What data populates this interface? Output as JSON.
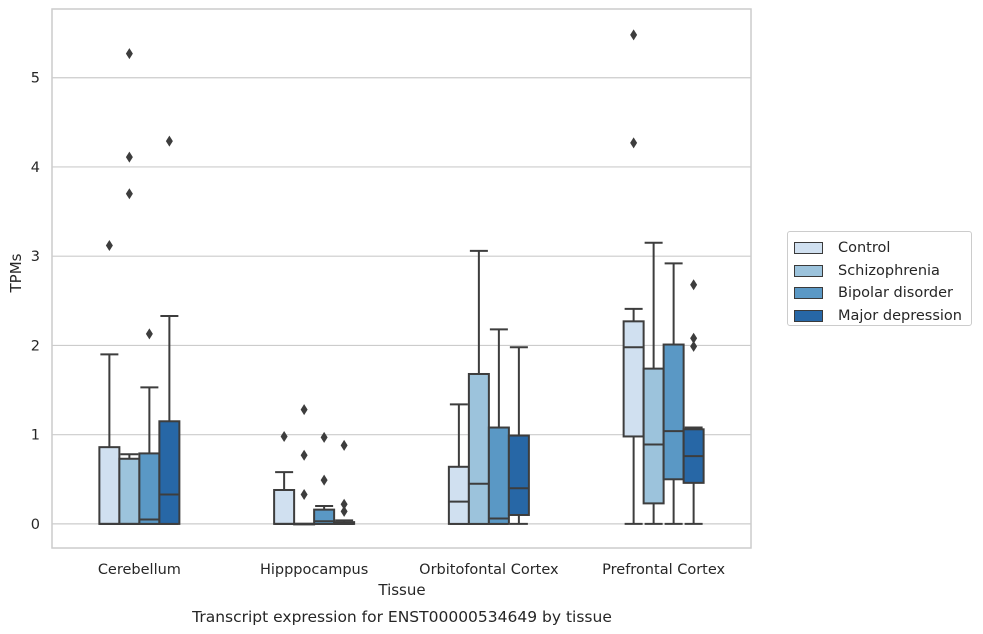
{
  "chart_data": {
    "type": "boxplot",
    "caption": "Transcript expression for ENST00000534649 by tissue",
    "xlabel": "Tissue",
    "ylabel": "TPMs",
    "ylim": [
      -0.27,
      5.77
    ],
    "yticks": [
      0,
      1,
      2,
      3,
      4,
      5
    ],
    "grid": true,
    "legend_position": "right",
    "categories": [
      "Cerebellum",
      "Hipppocampus",
      "Orbitofontal Cortex",
      "Prefrontal Cortex"
    ],
    "series": [
      {
        "name": "Control",
        "color": "#d0e0f0",
        "boxes": [
          {
            "whislo": 0,
            "q1": 0,
            "med": 0,
            "q3": 0.86,
            "whishi": 1.9,
            "fliers": [
              3.12
            ]
          },
          {
            "whislo": 0,
            "q1": 0,
            "med": 0,
            "q3": 0.38,
            "whishi": 0.58,
            "fliers": [
              0.98
            ]
          },
          {
            "whislo": 0,
            "q1": 0,
            "med": 0.25,
            "q3": 0.64,
            "whishi": 1.34,
            "fliers": []
          },
          {
            "whislo": 0,
            "q1": 0.98,
            "med": 1.98,
            "q3": 2.27,
            "whishi": 2.41,
            "fliers": [
              4.27,
              5.48
            ]
          }
        ]
      },
      {
        "name": "Schizophrenia",
        "color": "#9cc3dc",
        "boxes": [
          {
            "whislo": 0,
            "q1": 0,
            "med": 0,
            "q3": 0.73,
            "whishi": 0.78,
            "fliers": [
              3.7,
              4.11,
              5.27
            ]
          },
          {
            "whislo": 0,
            "q1": 0,
            "med": 0,
            "q3": 0,
            "whishi": 0,
            "fliers": [
              0.33,
              0.77,
              1.28
            ]
          },
          {
            "whislo": 0,
            "q1": 0,
            "med": 0.45,
            "q3": 1.68,
            "whishi": 3.06,
            "fliers": []
          },
          {
            "whislo": 0,
            "q1": 0.23,
            "med": 0.89,
            "q3": 1.74,
            "whishi": 3.15,
            "fliers": []
          }
        ]
      },
      {
        "name": "Bipolar disorder",
        "color": "#5a98c5",
        "boxes": [
          {
            "whislo": 0,
            "q1": 0,
            "med": 0.05,
            "q3": 0.79,
            "whishi": 1.53,
            "fliers": [
              2.13
            ]
          },
          {
            "whislo": 0,
            "q1": 0,
            "med": 0.03,
            "q3": 0.16,
            "whishi": 0.2,
            "fliers": [
              0.49,
              0.97
            ]
          },
          {
            "whislo": 0,
            "q1": 0,
            "med": 0.06,
            "q3": 1.08,
            "whishi": 2.18,
            "fliers": []
          },
          {
            "whislo": 0,
            "q1": 0.5,
            "med": 1.04,
            "q3": 2.01,
            "whishi": 2.92,
            "fliers": []
          }
        ]
      },
      {
        "name": "Major depression",
        "color": "#2767a6",
        "boxes": [
          {
            "whislo": 0,
            "q1": 0,
            "med": 0.33,
            "q3": 1.15,
            "whishi": 2.33,
            "fliers": [
              4.29
            ]
          },
          {
            "whislo": 0,
            "q1": 0,
            "med": 0,
            "q3": 0.02,
            "whishi": 0.04,
            "fliers": [
              0.14,
              0.22,
              0.88
            ]
          },
          {
            "whislo": 0,
            "q1": 0.1,
            "med": 0.4,
            "q3": 0.99,
            "whishi": 1.98,
            "fliers": []
          },
          {
            "whislo": 0,
            "q1": 0.46,
            "med": 0.76,
            "q3": 1.06,
            "whishi": 1.08,
            "fliers": [
              1.99,
              2.08,
              2.68
            ]
          }
        ]
      }
    ]
  }
}
